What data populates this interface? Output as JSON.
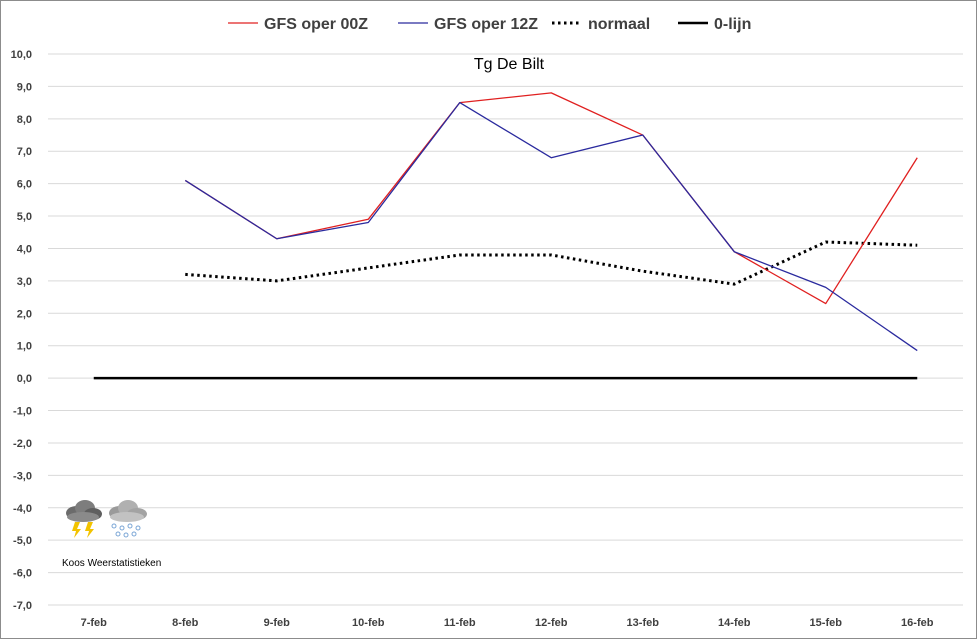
{
  "chart_data": {
    "type": "line",
    "title": "Tg De Bilt",
    "xlabel": "",
    "ylabel": "",
    "categories": [
      "7-feb",
      "8-feb",
      "9-feb",
      "10-feb",
      "11-feb",
      "12-feb",
      "13-feb",
      "14-feb",
      "15-feb",
      "16-feb"
    ],
    "ylim": [
      -7,
      10
    ],
    "ytick_step": 1,
    "ytick_labels": [
      "10,0",
      "9,0",
      "8,0",
      "7,0",
      "6,0",
      "5,0",
      "4,0",
      "3,0",
      "2,0",
      "1,0",
      "0,0",
      "-1,0",
      "-2,0",
      "-3,0",
      "-4,0",
      "-5,0",
      "-6,0",
      "-7,0"
    ],
    "grid": true,
    "legend_position": "top",
    "series": [
      {
        "name": "GFS oper 00Z",
        "color": "#e02020",
        "style": "solid",
        "values": [
          null,
          6.1,
          4.3,
          4.9,
          8.5,
          8.8,
          7.5,
          3.9,
          2.3,
          6.8
        ]
      },
      {
        "name": "GFS oper 12Z",
        "color": "#2a2a9e",
        "style": "solid",
        "values": [
          null,
          6.1,
          4.3,
          4.8,
          8.5,
          6.8,
          7.5,
          3.9,
          2.8,
          0.85
        ]
      },
      {
        "name": "normaal",
        "color": "#000000",
        "style": "dotted",
        "values": [
          null,
          3.2,
          3.0,
          3.4,
          3.8,
          3.8,
          3.3,
          2.9,
          4.2,
          4.1
        ]
      },
      {
        "name": "0-lijn",
        "color": "#000000",
        "style": "solid-thick",
        "values": [
          0,
          0,
          0,
          0,
          0,
          0,
          0,
          0,
          0,
          0
        ]
      }
    ]
  },
  "watermark": {
    "text": "Koos Weerstatistieken",
    "icons": [
      "thunderstorm-cloud-icon",
      "hail-cloud-icon"
    ]
  }
}
